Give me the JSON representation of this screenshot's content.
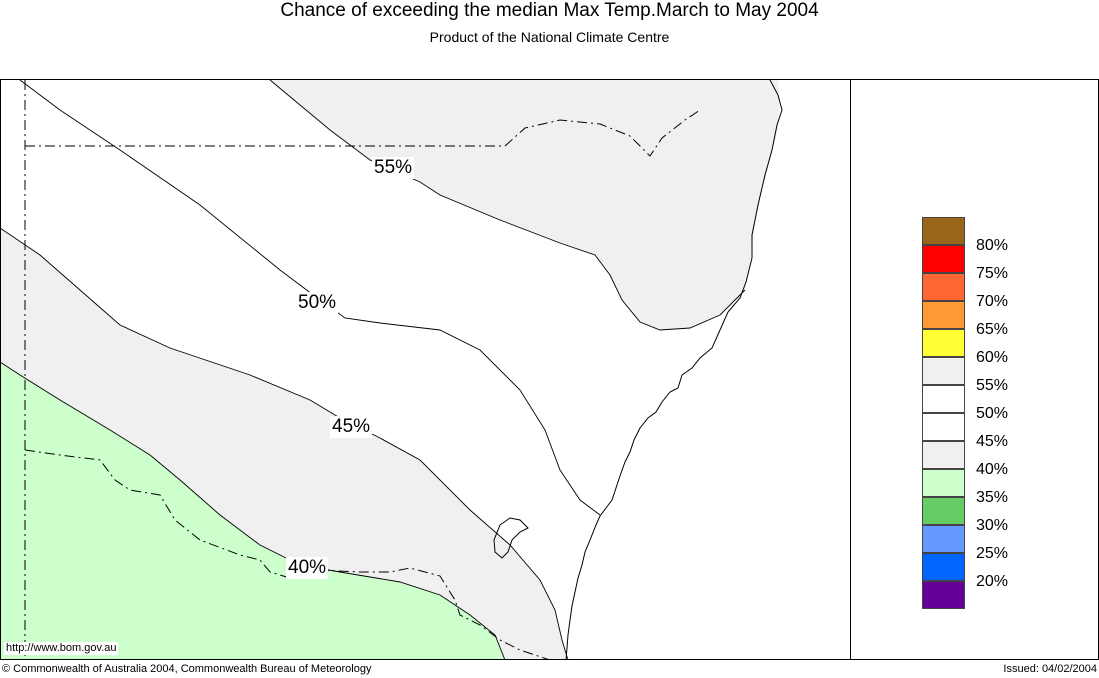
{
  "header": {
    "title": "Chance of exceeding the median Max Temp.March to May 2004",
    "subtitle": "Product of the National Climate Centre"
  },
  "map": {
    "contour_labels": [
      {
        "id": "55",
        "text": "55%"
      },
      {
        "id": "50",
        "text": "50%"
      },
      {
        "id": "45",
        "text": "45%"
      },
      {
        "id": "40",
        "text": "40%"
      }
    ],
    "url": "http://www.bom.gov.au",
    "colors": {
      "band_55_60": "#f0f0f0",
      "band_40_45": "#f0f0f0",
      "band_35_40": "#ccffcc",
      "background": "#ffffff"
    }
  },
  "legend": {
    "items": [
      {
        "label": "80%",
        "color": "#996619"
      },
      {
        "label": "75%",
        "color": "#ff0000"
      },
      {
        "label": "70%",
        "color": "#ff6633"
      },
      {
        "label": "65%",
        "color": "#ff9933"
      },
      {
        "label": "60%",
        "color": "#ffff33"
      },
      {
        "label": "55%",
        "color": "#f0f0f0"
      },
      {
        "label": "50%",
        "color": "#ffffff"
      },
      {
        "label": "45%",
        "color": "#ffffff"
      },
      {
        "label": "40%",
        "color": "#f0f0f0"
      },
      {
        "label": "35%",
        "color": "#ccffcc"
      },
      {
        "label": "30%",
        "color": "#66cc66"
      },
      {
        "label": "25%",
        "color": "#6699ff"
      },
      {
        "label": "20%",
        "color": "#0066ff"
      },
      {
        "label": "",
        "color": "#660099"
      }
    ]
  },
  "footer": {
    "copyright": "© Commonwealth of Australia 2004, Commonwealth Bureau of Meteorology",
    "issued": "Issued: 04/02/2004"
  }
}
